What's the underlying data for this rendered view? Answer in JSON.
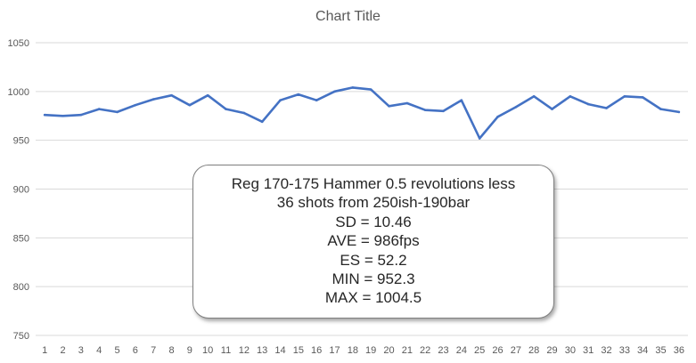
{
  "chart_data": {
    "type": "line",
    "title": "Chart Title",
    "xlabel": "",
    "ylabel": "",
    "ylim": [
      750,
      1050
    ],
    "yticks": [
      750,
      800,
      850,
      900,
      950,
      1000,
      1050
    ],
    "grid": true,
    "legend": "none",
    "x": [
      "1",
      "2",
      "3",
      "4",
      "5",
      "6",
      "7",
      "8",
      "9",
      "10",
      "11",
      "12",
      "13",
      "14",
      "15",
      "16",
      "17",
      "18",
      "19",
      "20",
      "21",
      "22",
      "23",
      "24",
      "25",
      "26",
      "27",
      "28",
      "29",
      "30",
      "31",
      "32",
      "33",
      "34",
      "35",
      "36"
    ],
    "series": [
      {
        "color": "#4472C4",
        "values": [
          976,
          975,
          976,
          982,
          979,
          986,
          992,
          996,
          986,
          996,
          982,
          978,
          969,
          991,
          997,
          991,
          1000,
          1004,
          1002,
          985,
          988,
          981,
          980,
          991,
          952,
          974,
          984,
          995,
          982,
          995,
          987,
          983,
          995,
          994,
          982,
          979
        ]
      }
    ],
    "annotation": {
      "lines": [
        "Reg 170-175 Hammer 0.5 revolutions less",
        "36 shots from 250ish-190bar",
        "SD = 10.46",
        "AVE = 986fps",
        "ES = 52.2",
        "MIN = 952.3",
        "MAX = 1004.5"
      ]
    }
  },
  "colors": {
    "line": "#4472C4",
    "grid": "#d9d9d9",
    "axis_text": "#595959"
  }
}
